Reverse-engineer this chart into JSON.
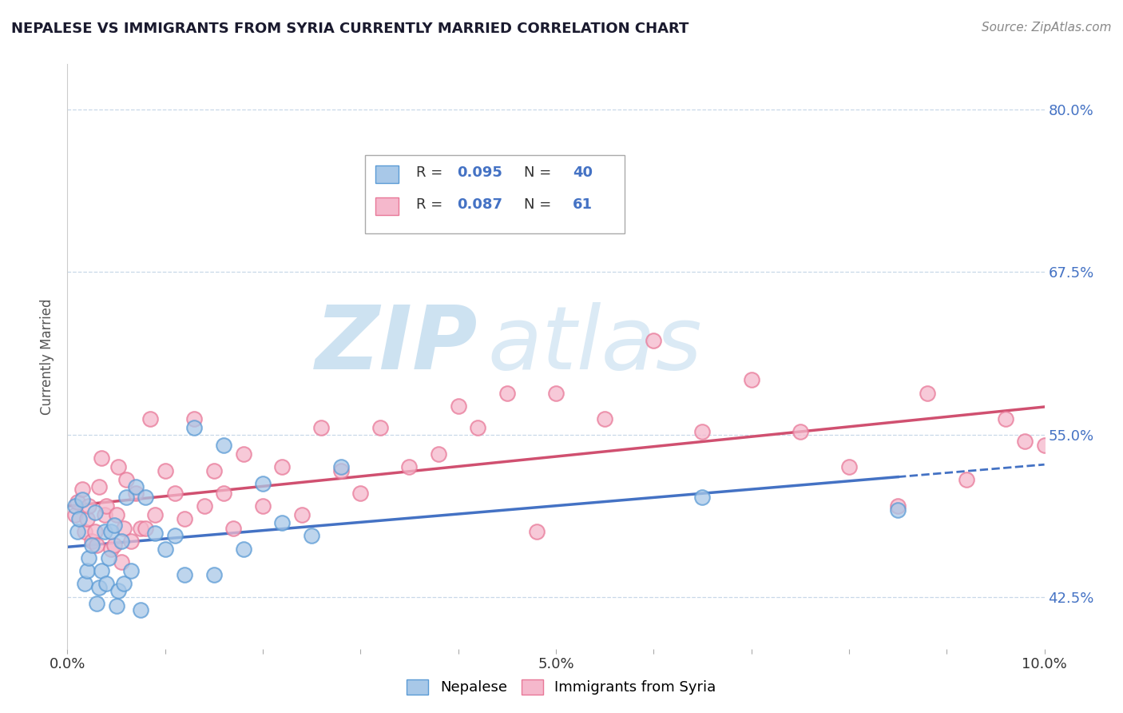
{
  "title": "NEPALESE VS IMMIGRANTS FROM SYRIA CURRENTLY MARRIED CORRELATION CHART",
  "source_text": "Source: ZipAtlas.com",
  "ylabel": "Currently Married",
  "xlim": [
    0.0,
    0.1
  ],
  "ylim": [
    0.385,
    0.835
  ],
  "ytick_positions": [
    0.425,
    0.55,
    0.675,
    0.8
  ],
  "ytick_labels": [
    "42.5%",
    "55.0%",
    "67.5%",
    "80.0%"
  ],
  "xtick_positions": [
    0.0,
    0.01,
    0.02,
    0.03,
    0.04,
    0.05,
    0.06,
    0.07,
    0.08,
    0.09,
    0.1
  ],
  "xtick_labels": [
    "0.0%",
    "",
    "",
    "",
    "",
    "5.0%",
    "",
    "",
    "",
    "",
    "10.0%"
  ],
  "legend_r1": "R = 0.095",
  "legend_n1": "N = 40",
  "legend_r2": "R = 0.087",
  "legend_n2": "N = 61",
  "color_blue_fill": "#a8c8e8",
  "color_blue_edge": "#5b9bd5",
  "color_pink_fill": "#f5b8cc",
  "color_pink_edge": "#e87898",
  "color_blue_line": "#4472c4",
  "color_pink_line": "#d05070",
  "watermark_zip_color": "#c8dff0",
  "watermark_atlas_color": "#d8e8f4",
  "grid_color": "#c8d8e8",
  "nepalese_x": [
    0.0008,
    0.001,
    0.0012,
    0.0015,
    0.0018,
    0.002,
    0.0022,
    0.0025,
    0.0028,
    0.003,
    0.0032,
    0.0035,
    0.0038,
    0.004,
    0.0042,
    0.0045,
    0.0048,
    0.005,
    0.0052,
    0.0055,
    0.0058,
    0.006,
    0.0065,
    0.007,
    0.0075,
    0.008,
    0.009,
    0.01,
    0.011,
    0.012,
    0.013,
    0.015,
    0.016,
    0.018,
    0.02,
    0.022,
    0.025,
    0.028,
    0.065,
    0.085
  ],
  "nepalese_y": [
    0.495,
    0.475,
    0.485,
    0.5,
    0.435,
    0.445,
    0.455,
    0.465,
    0.49,
    0.42,
    0.432,
    0.445,
    0.475,
    0.435,
    0.455,
    0.475,
    0.48,
    0.418,
    0.43,
    0.468,
    0.435,
    0.502,
    0.445,
    0.51,
    0.415,
    0.502,
    0.474,
    0.462,
    0.472,
    0.442,
    0.555,
    0.442,
    0.542,
    0.462,
    0.512,
    0.482,
    0.472,
    0.525,
    0.502,
    0.492
  ],
  "syria_x": [
    0.0008,
    0.001,
    0.0015,
    0.0018,
    0.002,
    0.0022,
    0.0025,
    0.0028,
    0.003,
    0.0032,
    0.0035,
    0.0038,
    0.004,
    0.0045,
    0.0048,
    0.005,
    0.0052,
    0.0055,
    0.0058,
    0.006,
    0.0065,
    0.007,
    0.0075,
    0.008,
    0.0085,
    0.009,
    0.01,
    0.011,
    0.012,
    0.013,
    0.014,
    0.015,
    0.016,
    0.017,
    0.018,
    0.02,
    0.022,
    0.024,
    0.026,
    0.028,
    0.03,
    0.032,
    0.035,
    0.038,
    0.04,
    0.042,
    0.045,
    0.048,
    0.05,
    0.055,
    0.06,
    0.065,
    0.07,
    0.075,
    0.08,
    0.085,
    0.088,
    0.092,
    0.096,
    0.098,
    0.1
  ],
  "syria_y": [
    0.488,
    0.498,
    0.508,
    0.475,
    0.485,
    0.495,
    0.468,
    0.475,
    0.465,
    0.51,
    0.532,
    0.488,
    0.495,
    0.462,
    0.465,
    0.488,
    0.525,
    0.452,
    0.478,
    0.515,
    0.468,
    0.505,
    0.478,
    0.478,
    0.562,
    0.488,
    0.522,
    0.505,
    0.485,
    0.562,
    0.495,
    0.522,
    0.505,
    0.478,
    0.535,
    0.495,
    0.525,
    0.488,
    0.555,
    0.522,
    0.505,
    0.555,
    0.525,
    0.535,
    0.572,
    0.555,
    0.582,
    0.475,
    0.582,
    0.562,
    0.622,
    0.552,
    0.592,
    0.552,
    0.525,
    0.495,
    0.582,
    0.515,
    0.562,
    0.545,
    0.542
  ]
}
